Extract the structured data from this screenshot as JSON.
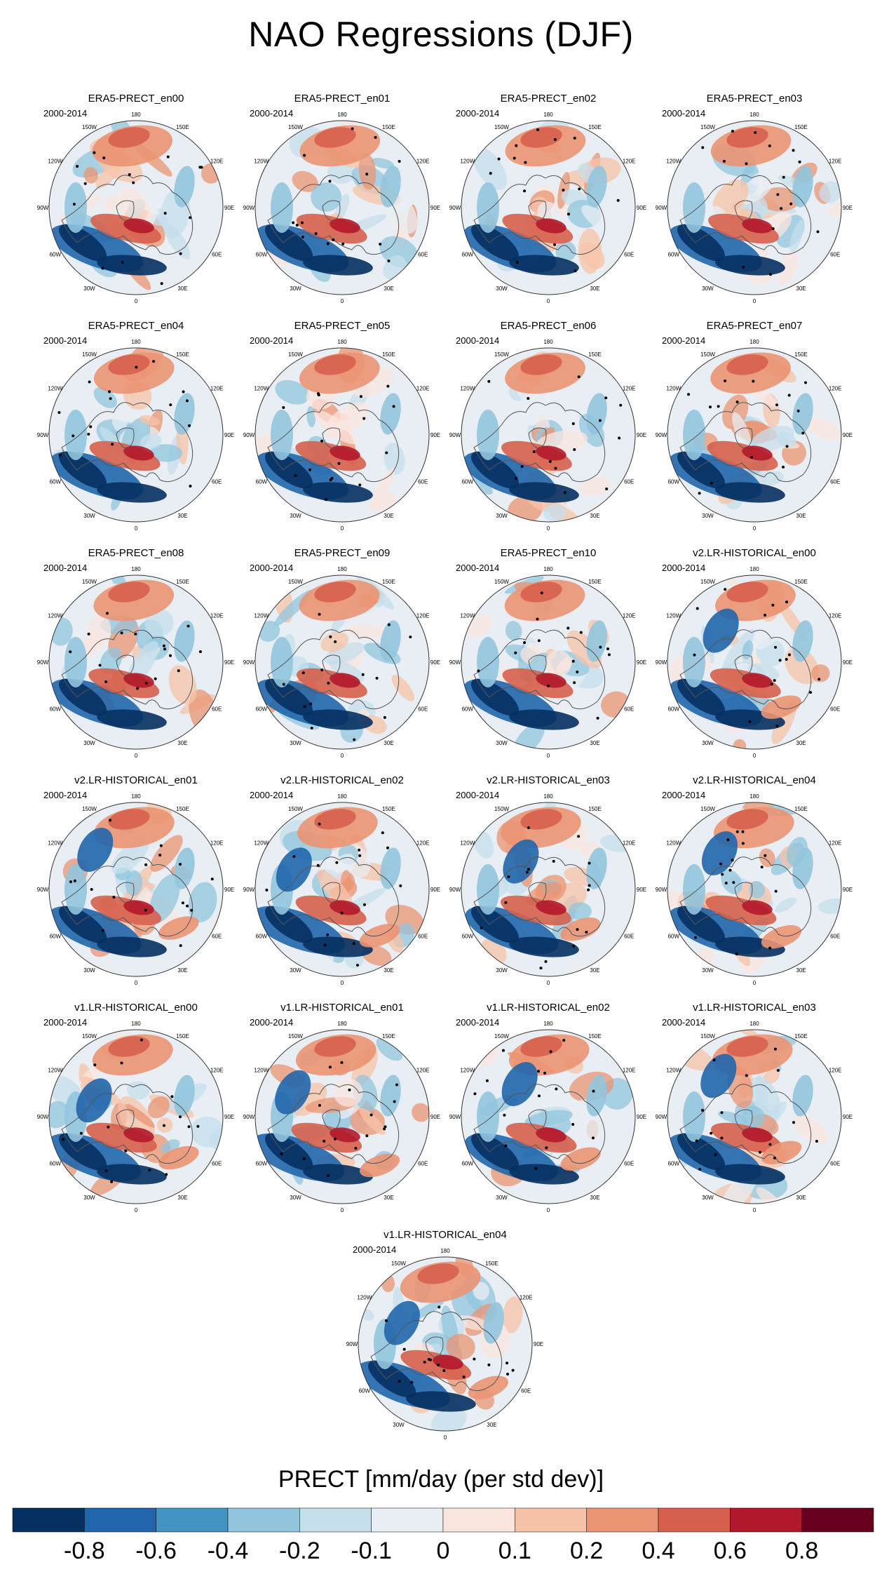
{
  "title": "NAO Regressions (DJF)",
  "period": "2000-2014",
  "longitude_labels": [
    "180",
    "150E",
    "120E",
    "90E",
    "60E",
    "30E",
    "0",
    "30W",
    "60W",
    "90W",
    "120W",
    "150W"
  ],
  "panels": [
    {
      "title": "ERA5-PRECT_en00"
    },
    {
      "title": "ERA5-PRECT_en01"
    },
    {
      "title": "ERA5-PRECT_en02"
    },
    {
      "title": "ERA5-PRECT_en03"
    },
    {
      "title": "ERA5-PRECT_en04"
    },
    {
      "title": "ERA5-PRECT_en05"
    },
    {
      "title": "ERA5-PRECT_en06"
    },
    {
      "title": "ERA5-PRECT_en07"
    },
    {
      "title": "ERA5-PRECT_en08"
    },
    {
      "title": "ERA5-PRECT_en09"
    },
    {
      "title": "ERA5-PRECT_en10"
    },
    {
      "title": "v2.LR-HISTORICAL_en00"
    },
    {
      "title": "v2.LR-HISTORICAL_en01"
    },
    {
      "title": "v2.LR-HISTORICAL_en02"
    },
    {
      "title": "v2.LR-HISTORICAL_en03"
    },
    {
      "title": "v2.LR-HISTORICAL_en04"
    },
    {
      "title": "v1.LR-HISTORICAL_en00"
    },
    {
      "title": "v1.LR-HISTORICAL_en01"
    },
    {
      "title": "v1.LR-HISTORICAL_en02"
    },
    {
      "title": "v1.LR-HISTORICAL_en03"
    },
    {
      "title": "v1.LR-HISTORICAL_en04"
    }
  ],
  "colorbar": {
    "title": "PRECT [mm/day (per std dev)]",
    "tick_labels": [
      "-0.8",
      "-0.6",
      "-0.4",
      "-0.2",
      "-0.1",
      "0",
      "0.1",
      "0.2",
      "0.4",
      "0.6",
      "0.8"
    ],
    "colors": [
      "#053061",
      "#2166ac",
      "#4393c3",
      "#92c5de",
      "#c5dfec",
      "#e8eef3",
      "#fbe6df",
      "#f7c3a8",
      "#eb9473",
      "#d6604d",
      "#b2182b",
      "#67001f"
    ]
  }
}
